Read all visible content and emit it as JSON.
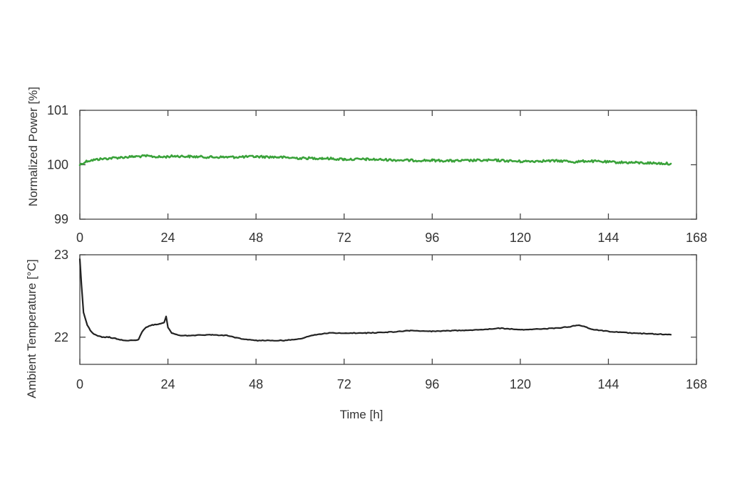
{
  "chart_data": [
    {
      "type": "line",
      "ylabel": "Normalized Power [%]",
      "xlim": [
        0,
        168
      ],
      "ylim": [
        99,
        101
      ],
      "xticks": [
        "0",
        "24",
        "48",
        "72",
        "96",
        "120",
        "144",
        "168"
      ],
      "yticks": [
        "99",
        "100",
        "101"
      ],
      "grid": false,
      "series": [
        {
          "color": "#3aa23a",
          "x": [
            0,
            2,
            5,
            10,
            15,
            18,
            22,
            26,
            30,
            36,
            42,
            48,
            54,
            60,
            66,
            72,
            78,
            84,
            90,
            96,
            102,
            108,
            114,
            120,
            126,
            132,
            135,
            138,
            144,
            150,
            156,
            161
          ],
          "y": [
            100.0,
            100.07,
            100.1,
            100.13,
            100.15,
            100.16,
            100.14,
            100.16,
            100.15,
            100.14,
            100.14,
            100.15,
            100.14,
            100.12,
            100.12,
            100.1,
            100.1,
            100.09,
            100.08,
            100.08,
            100.07,
            100.08,
            100.08,
            100.06,
            100.07,
            100.07,
            100.05,
            100.07,
            100.05,
            100.04,
            100.03,
            100.02
          ]
        }
      ]
    },
    {
      "type": "line",
      "xlabel": "Time [h]",
      "ylabel": "Ambient Temperature [°C]",
      "xlim": [
        0,
        168
      ],
      "ylim": [
        21.67,
        23
      ],
      "xticks": [
        "0",
        "24",
        "48",
        "72",
        "96",
        "120",
        "144",
        "168"
      ],
      "yticks": [
        "22",
        "23"
      ],
      "grid": false,
      "series": [
        {
          "color": "#222222",
          "x": [
            0,
            0.5,
            1,
            2,
            3,
            4,
            6,
            8,
            10,
            12,
            14,
            16,
            17,
            18,
            20,
            22,
            23,
            23.5,
            24,
            25,
            27,
            30,
            36,
            40,
            44,
            48,
            52,
            56,
            60,
            64,
            68,
            72,
            78,
            84,
            90,
            96,
            102,
            108,
            112,
            114,
            120,
            126,
            130,
            134,
            136,
            138,
            140,
            144,
            150,
            156,
            161
          ],
          "y": [
            22.95,
            22.6,
            22.3,
            22.15,
            22.07,
            22.03,
            22.0,
            22.0,
            21.98,
            21.96,
            21.96,
            21.97,
            22.07,
            22.12,
            22.15,
            22.16,
            22.18,
            22.25,
            22.12,
            22.05,
            22.02,
            22.02,
            22.03,
            22.02,
            21.98,
            21.96,
            21.96,
            21.96,
            21.98,
            22.03,
            22.05,
            22.05,
            22.05,
            22.06,
            22.08,
            22.07,
            22.08,
            22.09,
            22.1,
            22.11,
            22.09,
            22.1,
            22.11,
            22.13,
            22.15,
            22.12,
            22.09,
            22.07,
            22.05,
            22.04,
            22.03
          ]
        }
      ]
    }
  ]
}
